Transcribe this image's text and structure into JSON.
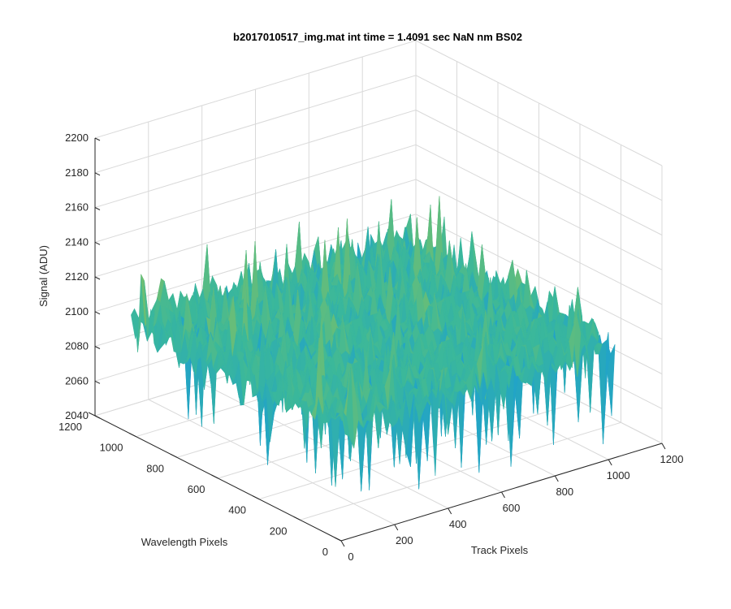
{
  "chart_data": {
    "type": "surface",
    "title": "b2017010517_img.mat int time = 1.4091 sec  NaN nm BS02",
    "xlabel": "Track Pixels",
    "ylabel": "Wavelength Pixels",
    "zlabel": "Signal (ADU)",
    "xlim": [
      0,
      1200
    ],
    "ylim": [
      0,
      1200
    ],
    "zlim": [
      2040,
      2200
    ],
    "x_ticks": [
      "0",
      "200",
      "400",
      "600",
      "800",
      "1000",
      "1200"
    ],
    "y_ticks": [
      "0",
      "200",
      "400",
      "600",
      "800",
      "1000",
      "1200"
    ],
    "z_ticks": [
      "2040",
      "2060",
      "2080",
      "2100",
      "2120",
      "2140",
      "2160",
      "2180",
      "2200"
    ],
    "surface_extent": {
      "x": [
        0,
        1024
      ],
      "y": [
        0,
        1024
      ]
    },
    "z_mean": 2105,
    "z_min": 2045,
    "z_max": 2180,
    "grid": true,
    "colormap": [
      "#1f77d4",
      "#21a3c9",
      "#3bb89a",
      "#8fc25a",
      "#e0c43a"
    ]
  }
}
